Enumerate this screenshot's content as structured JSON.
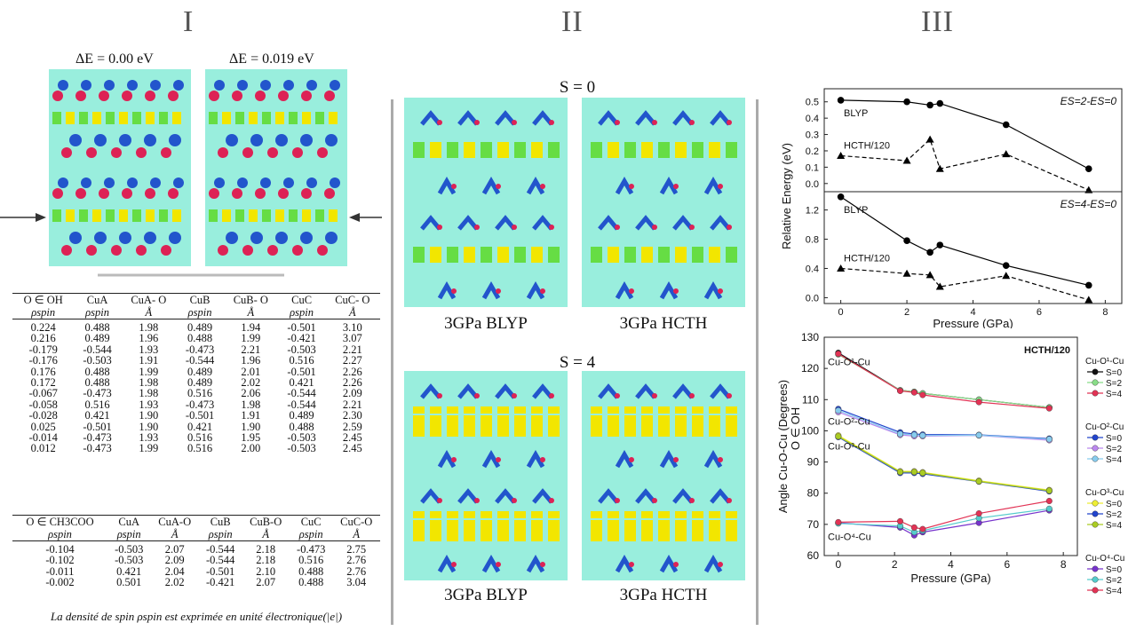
{
  "panels": {
    "p1": "I",
    "p2": "II",
    "p3": "III"
  },
  "panel1": {
    "dE_left": "ΔE = 0.00 eV",
    "dE_right": "ΔE = 0.019 eV",
    "oh_table": {
      "headers": [
        [
          "O ∈ OH",
          "ρspin"
        ],
        [
          "CuA",
          "ρspin"
        ],
        [
          "CuA- O",
          "Å"
        ],
        [
          "CuB",
          "ρspin"
        ],
        [
          "CuB- O",
          "Å"
        ],
        [
          "CuC",
          "ρspin"
        ],
        [
          "CuC- O",
          "Å"
        ]
      ],
      "rows": [
        [
          "0.224",
          "0.488",
          "1.98",
          "0.489",
          "1.94",
          "-0.501",
          "3.10"
        ],
        [
          "0.216",
          "0.489",
          "1.96",
          "0.488",
          "1.99",
          "-0.421",
          "3.07"
        ],
        [
          "-0.179",
          "-0.544",
          "1.93",
          "-0.473",
          "2.21",
          "-0.503",
          "2.21"
        ],
        [
          "-0.176",
          "-0.503",
          "1.91",
          "-0.544",
          "1.96",
          "0.516",
          "2.27"
        ],
        [
          "0.176",
          "0.488",
          "1.99",
          "0.489",
          "2.01",
          "-0.501",
          "2.26"
        ],
        [
          "0.172",
          "0.488",
          "1.98",
          "0.489",
          "2.02",
          "0.421",
          "2.26"
        ],
        [
          "-0.067",
          "-0.473",
          "1.98",
          "0.516",
          "2.06",
          "-0.544",
          "2.09"
        ],
        [
          "-0.058",
          "0.516",
          "1.93",
          "-0.473",
          "1.98",
          "-0.544",
          "2.21"
        ],
        [
          "-0.028",
          "0.421",
          "1.90",
          "-0.501",
          "1.91",
          "0.489",
          "2.30"
        ],
        [
          "0.025",
          "-0.501",
          "1.90",
          "0.421",
          "1.90",
          "0.488",
          "2.59"
        ],
        [
          "-0.014",
          "-0.473",
          "1.93",
          "0.516",
          "1.95",
          "-0.503",
          "2.45"
        ],
        [
          "0.012",
          "-0.473",
          "1.99",
          "0.516",
          "2.00",
          "-0.503",
          "2.45"
        ]
      ]
    },
    "ac_table": {
      "headers": [
        [
          "O ∈ CH3COO",
          "ρspin"
        ],
        [
          "CuA",
          "ρspin"
        ],
        [
          "CuA-O",
          "Å"
        ],
        [
          "CuB",
          "ρspin"
        ],
        [
          "CuB-O",
          "Å"
        ],
        [
          "CuC",
          "ρspin"
        ],
        [
          "CuC-O",
          "Å"
        ]
      ],
      "rows": [
        [
          "-0.104",
          "-0.503",
          "2.07",
          "-0.544",
          "2.18",
          "-0.473",
          "2.75"
        ],
        [
          "-0.102",
          "-0.503",
          "2.09",
          "-0.544",
          "2.18",
          "0.516",
          "2.76"
        ],
        [
          "-0.011",
          "0.421",
          "2.04",
          "-0.501",
          "2.10",
          "0.488",
          "2.76"
        ],
        [
          "-0.002",
          "0.501",
          "2.02",
          "-0.421",
          "2.07",
          "0.488",
          "3.04"
        ]
      ]
    },
    "note": "La densité de spin ρspin est exprimée en unité électronique(|e|)"
  },
  "panel2": {
    "s0_title": "S = 0",
    "s4_title": "S = 4",
    "cap_top_left": "3GPa BLYP",
    "cap_top_right": "3GPa HCTH",
    "cap_bot_left": "3GPa BLYP",
    "cap_bot_right": "3GPa HCTH"
  },
  "colors": {
    "bg_struct": "#99eedd",
    "cu_yellow": "#f2e600",
    "green": "#66dd44",
    "blue": "#2255cc",
    "red": "#dd2255"
  },
  "chart_data": [
    {
      "type": "line",
      "ylabel": "Relative Energy (eV)",
      "xlabel": "Pressure (GPa)",
      "xlim": [
        -0.5,
        8.5
      ],
      "panels": [
        {
          "label": "ES=2-ES=0",
          "ylim": [
            -0.05,
            0.58
          ],
          "yticks": [
            "0.5",
            "0.4",
            "0.3",
            "0.2",
            "0.1",
            "0.0"
          ],
          "series": [
            {
              "name": "BLYP",
              "style": "solid",
              "marker": "circle",
              "x": [
                0,
                2,
                2.7,
                3,
                5,
                7.5
              ],
              "y": [
                0.51,
                0.5,
                0.48,
                0.49,
                0.36,
                0.09
              ]
            },
            {
              "name": "HCTH/120",
              "style": "dashed",
              "marker": "triangle",
              "x": [
                0,
                2,
                2.7,
                3,
                5,
                7.5
              ],
              "y": [
                0.17,
                0.14,
                0.27,
                0.09,
                0.18,
                -0.04
              ]
            }
          ]
        },
        {
          "label": "ES=4-ES=0",
          "ylim": [
            -0.08,
            1.45
          ],
          "yticks": [
            "1.2",
            "0.8",
            "0.4",
            "0.0"
          ],
          "series": [
            {
              "name": "BLYP",
              "style": "solid",
              "marker": "circle",
              "x": [
                0,
                2,
                2.7,
                3,
                5,
                7.5
              ],
              "y": [
                1.38,
                0.78,
                0.62,
                0.72,
                0.44,
                0.17
              ]
            },
            {
              "name": "HCTH/120",
              "style": "dashed",
              "marker": "triangle",
              "x": [
                0,
                2,
                2.7,
                3,
                5,
                7.5
              ],
              "y": [
                0.4,
                0.33,
                0.31,
                0.15,
                0.3,
                -0.03
              ]
            }
          ]
        }
      ],
      "xticks": [
        "0",
        "2",
        "4",
        "6",
        "8"
      ]
    },
    {
      "type": "line",
      "title": "HCTH/120",
      "ylabel": "Angle Cu-O-Cu (Degrees)",
      "ylabel2": "O ∈ OH",
      "xlabel": "Pressure (GPa)",
      "xlim": [
        -0.5,
        8.5
      ],
      "ylim": [
        60,
        130
      ],
      "xticks": [
        "0",
        "2",
        "4",
        "6",
        "8"
      ],
      "yticks": [
        "130",
        "120",
        "110",
        "100",
        "90",
        "80",
        "70",
        "60"
      ],
      "x": [
        0,
        2.2,
        2.7,
        3,
        5,
        7.5
      ],
      "groups": [
        {
          "name": "Cu-O1-Cu",
          "legend": "Cu-O¹-Cu",
          "series": [
            {
              "name": "S=0",
              "color": "#111111",
              "y": [
                125,
                113,
                112.5,
                112,
                110,
                107.5
              ]
            },
            {
              "name": "S=2",
              "color": "#88dd88",
              "y": [
                124.5,
                113,
                112.5,
                112,
                110,
                107.5
              ]
            },
            {
              "name": "S=4",
              "color": "#e23355",
              "y": [
                124.7,
                112.8,
                112.3,
                111.5,
                109.2,
                107.2
              ]
            }
          ]
        },
        {
          "name": "Cu-O2-Cu",
          "legend": "Cu-O²-Cu",
          "series": [
            {
              "name": "S=0",
              "color": "#2244cc",
              "y": [
                107,
                99.5,
                99,
                98.8,
                98.7,
                97.5
              ]
            },
            {
              "name": "S=2",
              "color": "#bb88ee",
              "y": [
                106,
                98.7,
                98.3,
                98.3,
                98.5,
                97
              ]
            },
            {
              "name": "S=4",
              "color": "#88ccee",
              "y": [
                106.5,
                99,
                98.7,
                98.5,
                98.6,
                97.3
              ]
            }
          ]
        },
        {
          "name": "Cu-O3-Cu",
          "legend": "Cu-O³-Cu",
          "series": [
            {
              "name": "S=0",
              "color": "#eeee33",
              "y": [
                98.5,
                87,
                87,
                86.7,
                84,
                81
              ]
            },
            {
              "name": "S=2",
              "color": "#2244cc",
              "y": [
                98,
                86.5,
                86.5,
                86.2,
                83.7,
                80.6
              ]
            },
            {
              "name": "S=4",
              "color": "#aacc22",
              "y": [
                98.2,
                86.8,
                86.8,
                86.5,
                83.8,
                80.8
              ]
            }
          ]
        },
        {
          "name": "Cu-O4-Cu",
          "legend": "Cu-O⁴-Cu",
          "series": [
            {
              "name": "S=0",
              "color": "#7733cc",
              "y": [
                70.5,
                69,
                66.5,
                67.5,
                70.5,
                74.5
              ]
            },
            {
              "name": "S=2",
              "color": "#55cccc",
              "y": [
                70.3,
                69.5,
                67.5,
                68,
                72,
                75
              ]
            },
            {
              "name": "S=4",
              "color": "#e23355",
              "y": [
                70.7,
                71,
                69,
                68.5,
                73.5,
                77.5
              ]
            }
          ]
        }
      ]
    }
  ]
}
